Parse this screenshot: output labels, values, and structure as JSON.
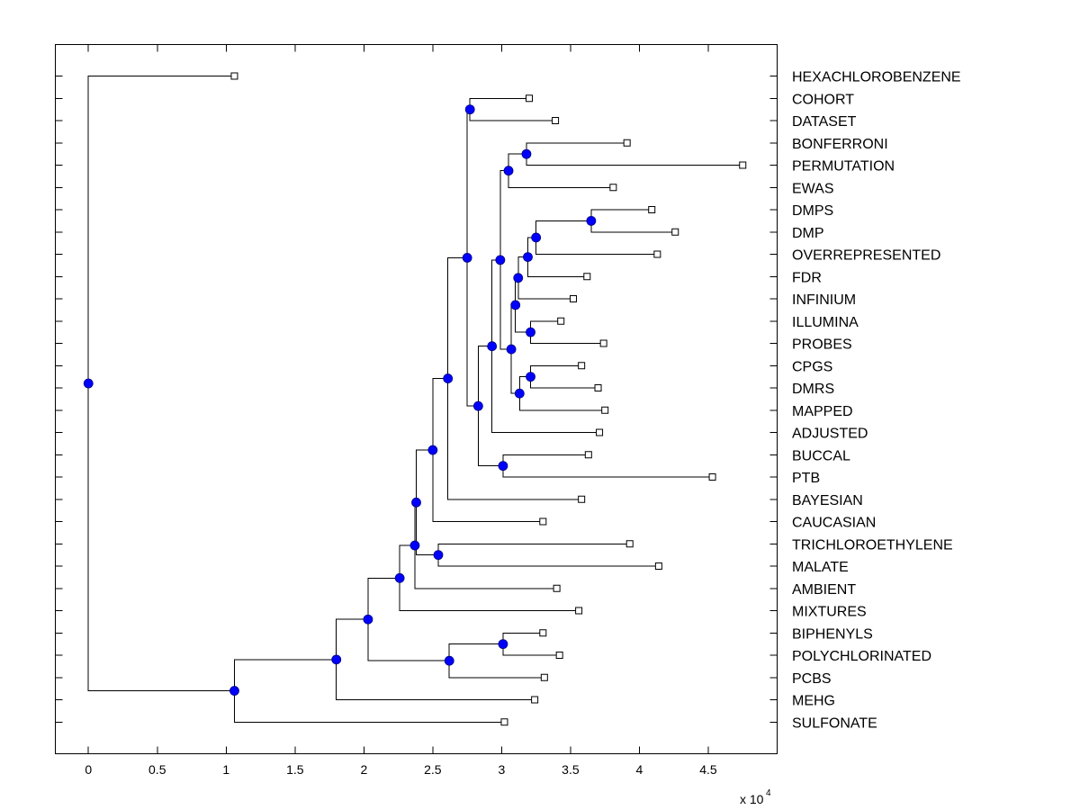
{
  "chart_data": {
    "type": "dendrogram",
    "orientation": "horizontal",
    "xlim": [
      -0.24,
      5.0
    ],
    "x_ticks": [
      0,
      0.5,
      1,
      1.5,
      2,
      2.5,
      3,
      3.5,
      4,
      4.5
    ],
    "x_tick_labels": [
      "0",
      "0.5",
      "1",
      "1.5",
      "2",
      "2.5",
      "3",
      "3.5",
      "4",
      "4.5"
    ],
    "x_exponent_base": "x 10",
    "x_exponent_power": "4",
    "x_scale": 10000,
    "colors": {
      "node": "#0000ff",
      "leaf_fill": "#ffffff",
      "line": "#000000"
    },
    "leaves": [
      {
        "label": "HEXACHLOROBENZENE",
        "x": 1.06
      },
      {
        "label": "COHORT",
        "x": 3.2
      },
      {
        "label": "DATASET",
        "x": 3.39
      },
      {
        "label": "BONFERRONI",
        "x": 3.91
      },
      {
        "label": "PERMUTATION",
        "x": 4.75
      },
      {
        "label": "EWAS",
        "x": 3.81
      },
      {
        "label": "DMPS",
        "x": 4.09
      },
      {
        "label": "DMP",
        "x": 4.26
      },
      {
        "label": "OVERREPRESENTED",
        "x": 4.13
      },
      {
        "label": "FDR",
        "x": 3.62
      },
      {
        "label": "INFINIUM",
        "x": 3.52
      },
      {
        "label": "ILLUMINA",
        "x": 3.43
      },
      {
        "label": "PROBES",
        "x": 3.74
      },
      {
        "label": "CPGS",
        "x": 3.58
      },
      {
        "label": "DMRS",
        "x": 3.7
      },
      {
        "label": "MAPPED",
        "x": 3.75
      },
      {
        "label": "ADJUSTED",
        "x": 3.71
      },
      {
        "label": "BUCCAL",
        "x": 3.63
      },
      {
        "label": "PTB",
        "x": 4.53
      },
      {
        "label": "BAYESIAN",
        "x": 3.58
      },
      {
        "label": "CAUCASIAN",
        "x": 3.3
      },
      {
        "label": "TRICHLOROETHYLENE",
        "x": 3.93
      },
      {
        "label": "MALATE",
        "x": 4.14
      },
      {
        "label": "AMBIENT",
        "x": 3.4
      },
      {
        "label": "MIXTURES",
        "x": 3.56
      },
      {
        "label": "BIPHENYLS",
        "x": 3.3
      },
      {
        "label": "POLYCHLORINATED",
        "x": 3.42
      },
      {
        "label": "PCBS",
        "x": 3.31
      },
      {
        "label": "MEHG",
        "x": 3.24
      },
      {
        "label": "SULFONATE",
        "x": 3.02
      }
    ],
    "nodes": [
      {
        "id": "n_cohort_dataset",
        "x": 2.77,
        "children": [
          1,
          2
        ]
      },
      {
        "id": "n_bonf_perm",
        "x": 3.18,
        "children": [
          3,
          4
        ]
      },
      {
        "id": "n_bonf_perm_ewas",
        "x": 3.05,
        "children": [
          "n_bonf_perm",
          5
        ]
      },
      {
        "id": "n_dmps_dmp",
        "x": 3.65,
        "children": [
          6,
          7
        ]
      },
      {
        "id": "n_dmp_group",
        "x": 3.25,
        "children": [
          "n_dmps_dmp",
          8
        ]
      },
      {
        "id": "n_dmp_fdr",
        "x": 3.19,
        "children": [
          "n_dmp_group",
          9
        ]
      },
      {
        "id": "n_dmp_infinium",
        "x": 3.12,
        "children": [
          "n_dmp_fdr",
          10
        ]
      },
      {
        "id": "n_illumina_probes",
        "x": 3.21,
        "children": [
          11,
          12
        ]
      },
      {
        "id": "n_dmp_illumina",
        "x": 3.1,
        "children": [
          "n_dmp_infinium",
          "n_illumina_probes"
        ]
      },
      {
        "id": "n_cpgs_dmrs",
        "x": 3.21,
        "children": [
          13,
          14
        ]
      },
      {
        "id": "n_cpgs_mapped",
        "x": 3.13,
        "children": [
          "n_cpgs_dmrs",
          15
        ]
      },
      {
        "id": "n_probe_cluster",
        "x": 3.07,
        "children": [
          "n_dmp_illumina",
          "n_cpgs_mapped"
        ]
      },
      {
        "id": "n_ewas_cluster",
        "x": 2.99,
        "children": [
          "n_bonf_perm_ewas",
          "n_probe_cluster"
        ]
      },
      {
        "id": "n_adjusted",
        "x": 2.93,
        "children": [
          "n_ewas_cluster",
          16
        ]
      },
      {
        "id": "n_buccal_ptb",
        "x": 3.01,
        "children": [
          17,
          18
        ]
      },
      {
        "id": "n_adjusted_buccal",
        "x": 2.83,
        "children": [
          "n_adjusted",
          "n_buccal_ptb"
        ]
      },
      {
        "id": "n_cohort_block",
        "x": 2.75,
        "children": [
          "n_cohort_dataset",
          "n_adjusted_buccal"
        ]
      },
      {
        "id": "n_bayesian",
        "x": 2.61,
        "children": [
          "n_cohort_block",
          19
        ]
      },
      {
        "id": "n_caucasian",
        "x": 2.5,
        "children": [
          "n_bayesian",
          20
        ]
      },
      {
        "id": "n_tce_malate",
        "x": 2.54,
        "children": [
          21,
          22
        ]
      },
      {
        "id": "n_tce_block",
        "x": 2.38,
        "children": [
          "n_caucasian",
          "n_tce_malate"
        ]
      },
      {
        "id": "n_ambient",
        "x": 2.37,
        "children": [
          "n_tce_block",
          23
        ]
      },
      {
        "id": "n_mixtures",
        "x": 2.26,
        "children": [
          "n_ambient",
          24
        ]
      },
      {
        "id": "n_bip_poly",
        "x": 3.01,
        "children": [
          25,
          26
        ]
      },
      {
        "id": "n_pcbs",
        "x": 2.62,
        "children": [
          "n_bip_poly",
          27
        ]
      },
      {
        "id": "n_mixtures_pcbs",
        "x": 2.03,
        "children": [
          "n_mixtures",
          "n_pcbs"
        ]
      },
      {
        "id": "n_mehg",
        "x": 1.8,
        "children": [
          "n_mixtures_pcbs",
          28
        ]
      },
      {
        "id": "n_sulfonate",
        "x": 1.06,
        "children": [
          "n_mehg",
          29
        ]
      },
      {
        "id": "n_root",
        "x": 0.0,
        "children": [
          0,
          "n_sulfonate"
        ]
      }
    ]
  }
}
